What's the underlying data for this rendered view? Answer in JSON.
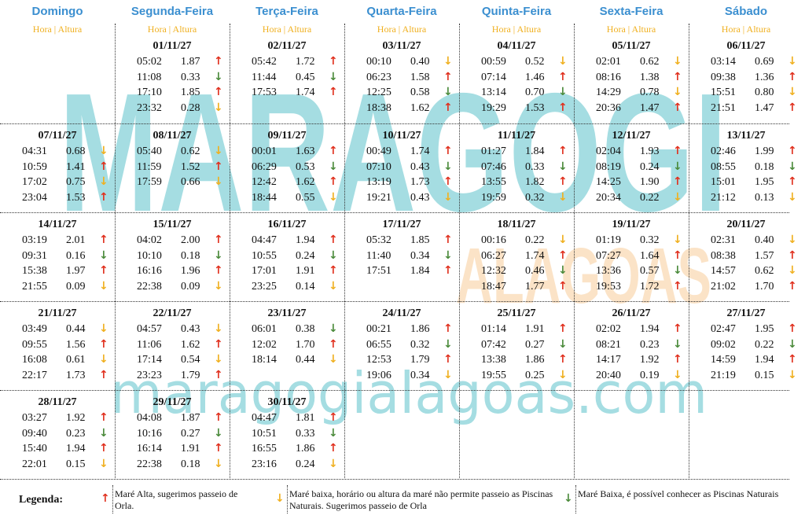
{
  "header": {
    "days": [
      "Domingo",
      "Segunda-Feira",
      "Terça-Feira",
      "Quarta-Feira",
      "Quinta-Feira",
      "Sexta-Feira",
      "Sábado"
    ],
    "subheader": "Hora | Altura"
  },
  "watermark": {
    "main": "MARAGOGI",
    "sub": "ALAGOAS",
    "site": "maragogialagoas.com"
  },
  "weeks": [
    [
      null,
      {
        "date": "01/11/27",
        "tides": [
          {
            "time": "05:02",
            "height": "1.87",
            "arrow": "↑",
            "color": "#e0301e"
          },
          {
            "time": "11:08",
            "height": "0.33",
            "arrow": "↓",
            "color": "#4a8a3a"
          },
          {
            "time": "17:10",
            "height": "1.85",
            "arrow": "↑",
            "color": "#e0301e"
          },
          {
            "time": "23:32",
            "height": "0.28",
            "arrow": "↓",
            "color": "#f0b020"
          }
        ]
      },
      {
        "date": "02/11/27",
        "tides": [
          {
            "time": "05:42",
            "height": "1.72",
            "arrow": "↑",
            "color": "#e0301e"
          },
          {
            "time": "11:44",
            "height": "0.45",
            "arrow": "↓",
            "color": "#4a8a3a"
          },
          {
            "time": "17:53",
            "height": "1.74",
            "arrow": "↑",
            "color": "#e0301e"
          }
        ]
      },
      {
        "date": "03/11/27",
        "tides": [
          {
            "time": "00:10",
            "height": "0.40",
            "arrow": "↓",
            "color": "#f0b020"
          },
          {
            "time": "06:23",
            "height": "1.58",
            "arrow": "↑",
            "color": "#e0301e"
          },
          {
            "time": "12:25",
            "height": "0.58",
            "arrow": "↓",
            "color": "#4a8a3a"
          },
          {
            "time": "18:38",
            "height": "1.62",
            "arrow": "↑",
            "color": "#e0301e"
          }
        ]
      },
      {
        "date": "04/11/27",
        "tides": [
          {
            "time": "00:59",
            "height": "0.52",
            "arrow": "↓",
            "color": "#f0b020"
          },
          {
            "time": "07:14",
            "height": "1.46",
            "arrow": "↑",
            "color": "#e0301e"
          },
          {
            "time": "13:14",
            "height": "0.70",
            "arrow": "↓",
            "color": "#4a8a3a"
          },
          {
            "time": "19:29",
            "height": "1.53",
            "arrow": "↑",
            "color": "#e0301e"
          }
        ]
      },
      {
        "date": "05/11/27",
        "tides": [
          {
            "time": "02:01",
            "height": "0.62",
            "arrow": "↓",
            "color": "#f0b020"
          },
          {
            "time": "08:16",
            "height": "1.38",
            "arrow": "↑",
            "color": "#e0301e"
          },
          {
            "time": "14:29",
            "height": "0.78",
            "arrow": "↓",
            "color": "#f0b020"
          },
          {
            "time": "20:36",
            "height": "1.47",
            "arrow": "↑",
            "color": "#e0301e"
          }
        ]
      },
      {
        "date": "06/11/27",
        "tides": [
          {
            "time": "03:14",
            "height": "0.69",
            "arrow": "↓",
            "color": "#f0b020"
          },
          {
            "time": "09:38",
            "height": "1.36",
            "arrow": "↑",
            "color": "#e0301e"
          },
          {
            "time": "15:51",
            "height": "0.80",
            "arrow": "↓",
            "color": "#f0b020"
          },
          {
            "time": "21:51",
            "height": "1.47",
            "arrow": "↑",
            "color": "#e0301e"
          }
        ]
      }
    ],
    [
      {
        "date": "07/11/27",
        "tides": [
          {
            "time": "04:31",
            "height": "0.68",
            "arrow": "↓",
            "color": "#f0b020"
          },
          {
            "time": "10:59",
            "height": "1.41",
            "arrow": "↑",
            "color": "#e0301e"
          },
          {
            "time": "17:02",
            "height": "0.75",
            "arrow": "↓",
            "color": "#f0b020"
          },
          {
            "time": "23:04",
            "height": "1.53",
            "arrow": "↑",
            "color": "#e0301e"
          }
        ]
      },
      {
        "date": "08/11/27",
        "tides": [
          {
            "time": "05:40",
            "height": "0.62",
            "arrow": "↓",
            "color": "#f0b020"
          },
          {
            "time": "11:59",
            "height": "1.52",
            "arrow": "↑",
            "color": "#e0301e"
          },
          {
            "time": "17:59",
            "height": "0.66",
            "arrow": "↓",
            "color": "#f0b020"
          }
        ]
      },
      {
        "date": "09/11/27",
        "tides": [
          {
            "time": "00:01",
            "height": "1.63",
            "arrow": "↑",
            "color": "#e0301e"
          },
          {
            "time": "06:29",
            "height": "0.53",
            "arrow": "↓",
            "color": "#4a8a3a"
          },
          {
            "time": "12:42",
            "height": "1.62",
            "arrow": "↑",
            "color": "#e0301e"
          },
          {
            "time": "18:44",
            "height": "0.55",
            "arrow": "↓",
            "color": "#f0b020"
          }
        ]
      },
      {
        "date": "10/11/27",
        "tides": [
          {
            "time": "00:49",
            "height": "1.74",
            "arrow": "↑",
            "color": "#e0301e"
          },
          {
            "time": "07:10",
            "height": "0.43",
            "arrow": "↓",
            "color": "#4a8a3a"
          },
          {
            "time": "13:19",
            "height": "1.73",
            "arrow": "↑",
            "color": "#e0301e"
          },
          {
            "time": "19:21",
            "height": "0.43",
            "arrow": "↓",
            "color": "#f0b020"
          }
        ]
      },
      {
        "date": "11/11/27",
        "tides": [
          {
            "time": "01:27",
            "height": "1.84",
            "arrow": "↑",
            "color": "#e0301e"
          },
          {
            "time": "07:46",
            "height": "0.33",
            "arrow": "↓",
            "color": "#4a8a3a"
          },
          {
            "time": "13:55",
            "height": "1.82",
            "arrow": "↑",
            "color": "#e0301e"
          },
          {
            "time": "19:59",
            "height": "0.32",
            "arrow": "↓",
            "color": "#f0b020"
          }
        ]
      },
      {
        "date": "12/11/27",
        "tides": [
          {
            "time": "02:04",
            "height": "1.93",
            "arrow": "↑",
            "color": "#e0301e"
          },
          {
            "time": "08:19",
            "height": "0.24",
            "arrow": "↓",
            "color": "#4a8a3a"
          },
          {
            "time": "14:25",
            "height": "1.90",
            "arrow": "↑",
            "color": "#e0301e"
          },
          {
            "time": "20:34",
            "height": "0.22",
            "arrow": "↓",
            "color": "#f0b020"
          }
        ]
      },
      {
        "date": "13/11/27",
        "tides": [
          {
            "time": "02:46",
            "height": "1.99",
            "arrow": "↑",
            "color": "#e0301e"
          },
          {
            "time": "08:55",
            "height": "0.18",
            "arrow": "↓",
            "color": "#4a8a3a"
          },
          {
            "time": "15:01",
            "height": "1.95",
            "arrow": "↑",
            "color": "#e0301e"
          },
          {
            "time": "21:12",
            "height": "0.13",
            "arrow": "↓",
            "color": "#f0b020"
          }
        ]
      }
    ],
    [
      {
        "date": "14/11/27",
        "tides": [
          {
            "time": "03:19",
            "height": "2.01",
            "arrow": "↑",
            "color": "#e0301e"
          },
          {
            "time": "09:31",
            "height": "0.16",
            "arrow": "↓",
            "color": "#4a8a3a"
          },
          {
            "time": "15:38",
            "height": "1.97",
            "arrow": "↑",
            "color": "#e0301e"
          },
          {
            "time": "21:55",
            "height": "0.09",
            "arrow": "↓",
            "color": "#f0b020"
          }
        ]
      },
      {
        "date": "15/11/27",
        "tides": [
          {
            "time": "04:02",
            "height": "2.00",
            "arrow": "↑",
            "color": "#e0301e"
          },
          {
            "time": "10:10",
            "height": "0.18",
            "arrow": "↓",
            "color": "#4a8a3a"
          },
          {
            "time": "16:16",
            "height": "1.96",
            "arrow": "↑",
            "color": "#e0301e"
          },
          {
            "time": "22:38",
            "height": "0.09",
            "arrow": "↓",
            "color": "#f0b020"
          }
        ]
      },
      {
        "date": "16/11/27",
        "tides": [
          {
            "time": "04:47",
            "height": "1.94",
            "arrow": "↑",
            "color": "#e0301e"
          },
          {
            "time": "10:55",
            "height": "0.24",
            "arrow": "↓",
            "color": "#4a8a3a"
          },
          {
            "time": "17:01",
            "height": "1.91",
            "arrow": "↑",
            "color": "#e0301e"
          },
          {
            "time": "23:25",
            "height": "0.14",
            "arrow": "↓",
            "color": "#f0b020"
          }
        ]
      },
      {
        "date": "17/11/27",
        "tides": [
          {
            "time": "05:32",
            "height": "1.85",
            "arrow": "↑",
            "color": "#e0301e"
          },
          {
            "time": "11:40",
            "height": "0.34",
            "arrow": "↓",
            "color": "#4a8a3a"
          },
          {
            "time": "17:51",
            "height": "1.84",
            "arrow": "↑",
            "color": "#e0301e"
          }
        ]
      },
      {
        "date": "18/11/27",
        "tides": [
          {
            "time": "00:16",
            "height": "0.22",
            "arrow": "↓",
            "color": "#f0b020"
          },
          {
            "time": "06:27",
            "height": "1.74",
            "arrow": "↑",
            "color": "#e0301e"
          },
          {
            "time": "12:32",
            "height": "0.46",
            "arrow": "↓",
            "color": "#4a8a3a"
          },
          {
            "time": "18:47",
            "height": "1.77",
            "arrow": "↑",
            "color": "#e0301e"
          }
        ]
      },
      {
        "date": "19/11/27",
        "tides": [
          {
            "time": "01:19",
            "height": "0.32",
            "arrow": "↓",
            "color": "#f0b020"
          },
          {
            "time": "07:27",
            "height": "1.64",
            "arrow": "↑",
            "color": "#e0301e"
          },
          {
            "time": "13:36",
            "height": "0.57",
            "arrow": "↓",
            "color": "#4a8a3a"
          },
          {
            "time": "19:53",
            "height": "1.72",
            "arrow": "↑",
            "color": "#e0301e"
          }
        ]
      },
      {
        "date": "20/11/27",
        "tides": [
          {
            "time": "02:31",
            "height": "0.40",
            "arrow": "↓",
            "color": "#f0b020"
          },
          {
            "time": "08:38",
            "height": "1.57",
            "arrow": "↑",
            "color": "#e0301e"
          },
          {
            "time": "14:57",
            "height": "0.62",
            "arrow": "↓",
            "color": "#f0b020"
          },
          {
            "time": "21:02",
            "height": "1.70",
            "arrow": "↑",
            "color": "#e0301e"
          }
        ]
      }
    ],
    [
      {
        "date": "21/11/27",
        "tides": [
          {
            "time": "03:49",
            "height": "0.44",
            "arrow": "↓",
            "color": "#f0b020"
          },
          {
            "time": "09:55",
            "height": "1.56",
            "arrow": "↑",
            "color": "#e0301e"
          },
          {
            "time": "16:08",
            "height": "0.61",
            "arrow": "↓",
            "color": "#f0b020"
          },
          {
            "time": "22:17",
            "height": "1.73",
            "arrow": "↑",
            "color": "#e0301e"
          }
        ]
      },
      {
        "date": "22/11/27",
        "tides": [
          {
            "time": "04:57",
            "height": "0.43",
            "arrow": "↓",
            "color": "#f0b020"
          },
          {
            "time": "11:06",
            "height": "1.62",
            "arrow": "↑",
            "color": "#e0301e"
          },
          {
            "time": "17:14",
            "height": "0.54",
            "arrow": "↓",
            "color": "#f0b020"
          },
          {
            "time": "23:23",
            "height": "1.79",
            "arrow": "↑",
            "color": "#e0301e"
          }
        ]
      },
      {
        "date": "23/11/27",
        "tides": [
          {
            "time": "06:01",
            "height": "0.38",
            "arrow": "↓",
            "color": "#4a8a3a"
          },
          {
            "time": "12:02",
            "height": "1.70",
            "arrow": "↑",
            "color": "#e0301e"
          },
          {
            "time": "18:14",
            "height": "0.44",
            "arrow": "↓",
            "color": "#f0b020"
          }
        ]
      },
      {
        "date": "24/11/27",
        "tides": [
          {
            "time": "00:21",
            "height": "1.86",
            "arrow": "↑",
            "color": "#e0301e"
          },
          {
            "time": "06:55",
            "height": "0.32",
            "arrow": "↓",
            "color": "#4a8a3a"
          },
          {
            "time": "12:53",
            "height": "1.79",
            "arrow": "↑",
            "color": "#e0301e"
          },
          {
            "time": "19:06",
            "height": "0.34",
            "arrow": "↓",
            "color": "#f0b020"
          }
        ]
      },
      {
        "date": "25/11/27",
        "tides": [
          {
            "time": "01:14",
            "height": "1.91",
            "arrow": "↑",
            "color": "#e0301e"
          },
          {
            "time": "07:42",
            "height": "0.27",
            "arrow": "↓",
            "color": "#4a8a3a"
          },
          {
            "time": "13:38",
            "height": "1.86",
            "arrow": "↑",
            "color": "#e0301e"
          },
          {
            "time": "19:55",
            "height": "0.25",
            "arrow": "↓",
            "color": "#f0b020"
          }
        ]
      },
      {
        "date": "26/11/27",
        "tides": [
          {
            "time": "02:02",
            "height": "1.94",
            "arrow": "↑",
            "color": "#e0301e"
          },
          {
            "time": "08:21",
            "height": "0.23",
            "arrow": "↓",
            "color": "#4a8a3a"
          },
          {
            "time": "14:17",
            "height": "1.92",
            "arrow": "↑",
            "color": "#e0301e"
          },
          {
            "time": "20:40",
            "height": "0.19",
            "arrow": "↓",
            "color": "#f0b020"
          }
        ]
      },
      {
        "date": "27/11/27",
        "tides": [
          {
            "time": "02:47",
            "height": "1.95",
            "arrow": "↑",
            "color": "#e0301e"
          },
          {
            "time": "09:02",
            "height": "0.22",
            "arrow": "↓",
            "color": "#4a8a3a"
          },
          {
            "time": "14:59",
            "height": "1.94",
            "arrow": "↑",
            "color": "#e0301e"
          },
          {
            "time": "21:19",
            "height": "0.15",
            "arrow": "↓",
            "color": "#f0b020"
          }
        ]
      }
    ],
    [
      {
        "date": "28/11/27",
        "tides": [
          {
            "time": "03:27",
            "height": "1.92",
            "arrow": "↑",
            "color": "#e0301e"
          },
          {
            "time": "09:40",
            "height": "0.23",
            "arrow": "↓",
            "color": "#4a8a3a"
          },
          {
            "time": "15:40",
            "height": "1.94",
            "arrow": "↑",
            "color": "#e0301e"
          },
          {
            "time": "22:01",
            "height": "0.15",
            "arrow": "↓",
            "color": "#f0b020"
          }
        ]
      },
      {
        "date": "29/11/27",
        "tides": [
          {
            "time": "04:08",
            "height": "1.87",
            "arrow": "↑",
            "color": "#e0301e"
          },
          {
            "time": "10:16",
            "height": "0.27",
            "arrow": "↓",
            "color": "#4a8a3a"
          },
          {
            "time": "16:14",
            "height": "1.91",
            "arrow": "↑",
            "color": "#e0301e"
          },
          {
            "time": "22:38",
            "height": "0.18",
            "arrow": "↓",
            "color": "#f0b020"
          }
        ]
      },
      {
        "date": "30/11/27",
        "tides": [
          {
            "time": "04:47",
            "height": "1.81",
            "arrow": "↑",
            "color": "#e0301e"
          },
          {
            "time": "10:51",
            "height": "0.33",
            "arrow": "↓",
            "color": "#4a8a3a"
          },
          {
            "time": "16:55",
            "height": "1.86",
            "arrow": "↑",
            "color": "#e0301e"
          },
          {
            "time": "23:16",
            "height": "0.24",
            "arrow": "↓",
            "color": "#f0b020"
          }
        ]
      },
      null,
      null,
      null,
      null
    ]
  ],
  "legend": {
    "title": "Legenda:",
    "items": [
      {
        "arrow": "↑",
        "color": "#e0301e",
        "text": "Maré Alta, sugerimos passeio de Orla."
      },
      {
        "arrow": "↓",
        "color": "#f0b020",
        "text": "Maré baixa, horário ou altura da maré não permite passeio as Piscinas Naturais. Sugerimos passeio de Orla"
      },
      {
        "arrow": "↓",
        "color": "#4a8a3a",
        "text": "Maré Baixa, é possível conhecer as Piscinas Naturais"
      }
    ]
  }
}
